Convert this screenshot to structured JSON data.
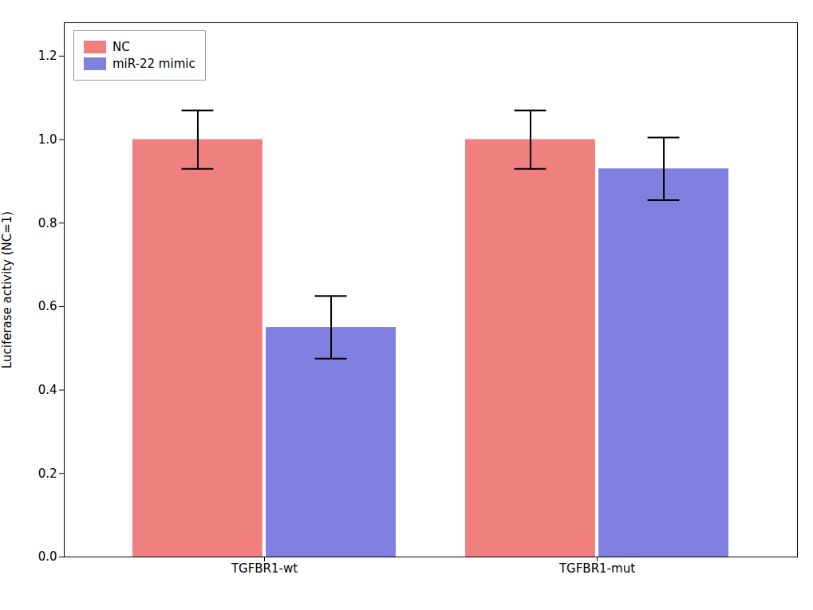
{
  "chart_data": {
    "type": "bar",
    "categories": [
      "TGFBR1-wt",
      "TGFBR1-mut"
    ],
    "series": [
      {
        "name": "NC",
        "color": "#F08080",
        "values": [
          1.0,
          1.0
        ],
        "errors": [
          0.07,
          0.07
        ]
      },
      {
        "name": "miR-22 mimic",
        "color": "#8080E0",
        "values": [
          0.55,
          0.93
        ],
        "errors": [
          0.075,
          0.075
        ]
      }
    ],
    "ylabel": "Luciferase activity (NC=1)",
    "ylim": [
      0.0,
      1.28
    ],
    "yticks": [
      {
        "value": 0.0,
        "label": "0.0"
      },
      0.2,
      0.4,
      0.6,
      0.8,
      {
        "value": 1.0,
        "label": "1.0"
      },
      1.2
    ],
    "grid": false,
    "legend": "upper left"
  }
}
